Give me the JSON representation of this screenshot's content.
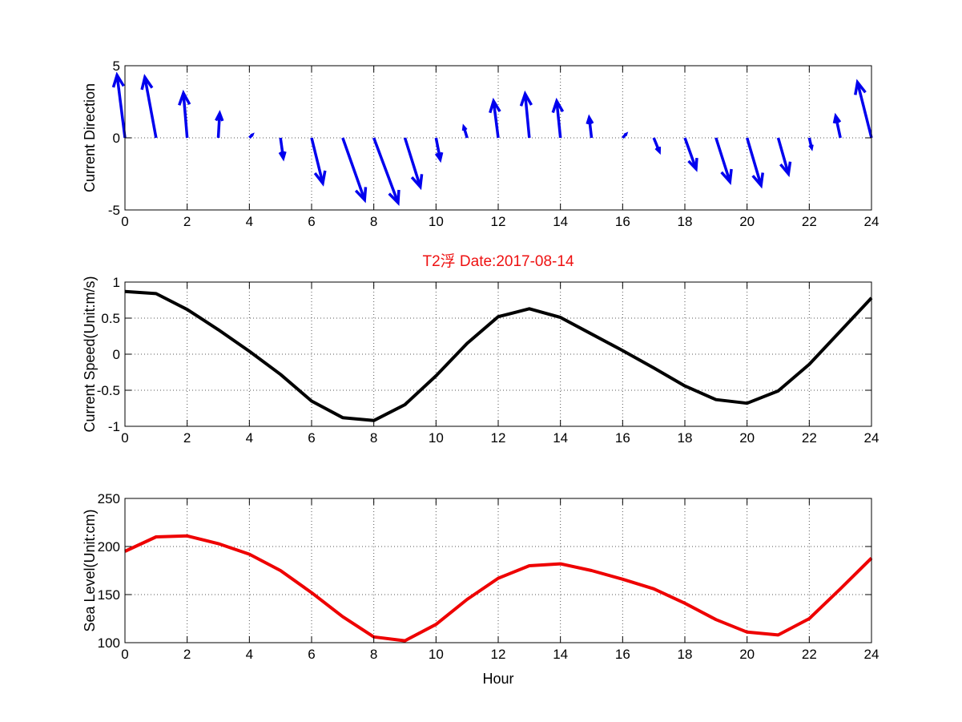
{
  "figure": {
    "title": "T2浮    Date:2017-08-14",
    "title_color": "#ee1111",
    "background": "#ffffff"
  },
  "chart_data": [
    {
      "type": "quiver",
      "title": "",
      "xlabel": "",
      "ylabel": "Current Direction",
      "xlim": [
        0,
        24
      ],
      "ylim": [
        -5,
        5
      ],
      "xticks": [
        0,
        2,
        4,
        6,
        8,
        10,
        12,
        14,
        16,
        18,
        20,
        22,
        24
      ],
      "yticks": [
        -5,
        0,
        5
      ],
      "grid": true,
      "color": "#0000ee",
      "series": [
        {
          "name": "Current Direction",
          "x": [
            0,
            1,
            2,
            3,
            4,
            5,
            6,
            7,
            8,
            9,
            10,
            11,
            12,
            13,
            14,
            15,
            16,
            17,
            18,
            19,
            20,
            21,
            22,
            23,
            24
          ],
          "u": [
            -0.17,
            -0.24,
            -0.08,
            0.03,
            0.06,
            0.06,
            0.24,
            0.47,
            0.52,
            0.33,
            0.09,
            -0.07,
            -0.1,
            -0.09,
            -0.08,
            -0.05,
            0.07,
            0.12,
            0.24,
            0.3,
            0.3,
            0.22,
            0.05,
            -0.1,
            -0.3
          ],
          "v": [
            0.87,
            0.84,
            0.62,
            0.34,
            0.04,
            -0.28,
            -0.63,
            -0.86,
            -0.9,
            -0.68,
            -0.3,
            0.15,
            0.51,
            0.61,
            0.51,
            0.28,
            0.05,
            -0.19,
            -0.43,
            -0.61,
            -0.66,
            -0.5,
            -0.14,
            0.3,
            0.77
          ]
        }
      ]
    },
    {
      "type": "line",
      "title": "T2浮    Date:2017-08-14",
      "xlabel": "",
      "ylabel": "Current Speed(Unit:m/s)",
      "xlim": [
        0,
        24
      ],
      "ylim": [
        -1,
        1
      ],
      "xticks": [
        0,
        2,
        4,
        6,
        8,
        10,
        12,
        14,
        16,
        18,
        20,
        22,
        24
      ],
      "yticks": [
        -1,
        -0.5,
        0,
        0.5,
        1
      ],
      "grid": true,
      "series": [
        {
          "name": "Current Speed",
          "color": "#000000",
          "x": [
            0,
            1,
            2,
            3,
            4,
            5,
            6,
            7,
            8,
            9,
            10,
            11,
            12,
            13,
            14,
            15,
            16,
            17,
            18,
            19,
            20,
            21,
            22,
            23,
            24
          ],
          "values": [
            0.87,
            0.84,
            0.62,
            0.34,
            0.04,
            -0.28,
            -0.65,
            -0.88,
            -0.92,
            -0.7,
            -0.3,
            0.15,
            0.52,
            0.63,
            0.51,
            0.28,
            0.05,
            -0.19,
            -0.44,
            -0.63,
            -0.68,
            -0.51,
            -0.14,
            0.32,
            0.78
          ]
        }
      ]
    },
    {
      "type": "line",
      "title": "",
      "xlabel": "Hour",
      "ylabel": "Sea Level(Unit:cm)",
      "xlim": [
        0,
        24
      ],
      "ylim": [
        100,
        250
      ],
      "xticks": [
        0,
        2,
        4,
        6,
        8,
        10,
        12,
        14,
        16,
        18,
        20,
        22,
        24
      ],
      "yticks": [
        100,
        150,
        200,
        250
      ],
      "grid": true,
      "series": [
        {
          "name": "Sea Level",
          "color": "#ee0000",
          "x": [
            0,
            1,
            2,
            3,
            4,
            5,
            6,
            7,
            8,
            9,
            10,
            11,
            12,
            13,
            14,
            15,
            16,
            17,
            18,
            19,
            20,
            21,
            22,
            23,
            24
          ],
          "values": [
            195,
            210,
            211,
            203,
            192,
            175,
            152,
            127,
            106,
            102,
            119,
            145,
            167,
            180,
            182,
            175,
            166,
            156,
            141,
            124,
            111,
            108,
            125,
            156,
            188
          ]
        }
      ]
    }
  ]
}
